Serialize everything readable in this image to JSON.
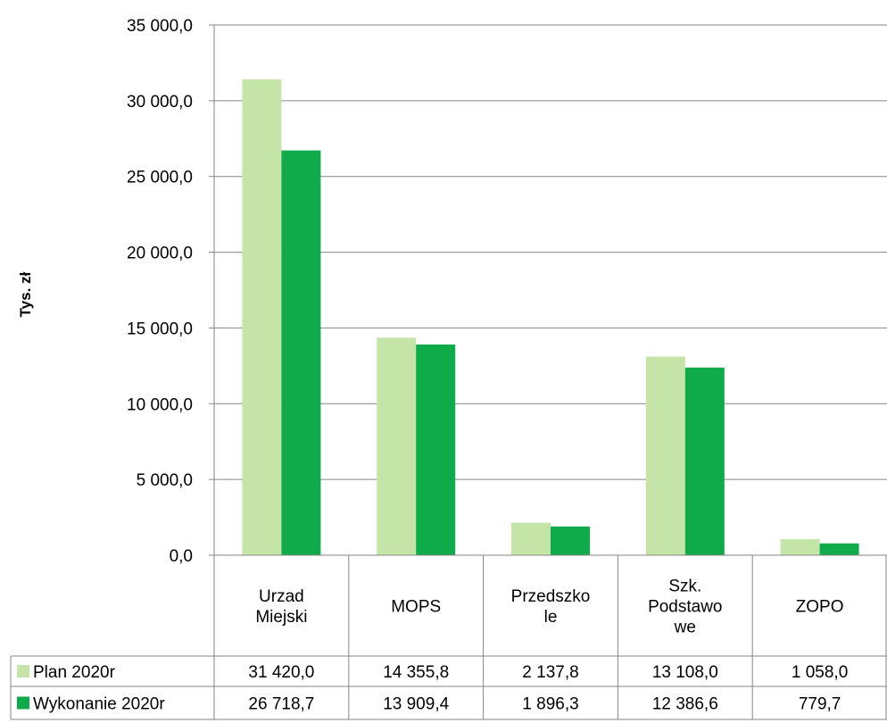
{
  "chart_data": {
    "type": "bar",
    "ylabel": "Tys. zł",
    "ylim": [
      0,
      35000
    ],
    "y_ticks": [
      0,
      5000,
      10000,
      15000,
      20000,
      25000,
      30000,
      35000
    ],
    "y_tick_labels": [
      "0,0",
      "5 000,0",
      "10 000,0",
      "15 000,0",
      "20 000,0",
      "25 000,0",
      "30 000,0",
      "35 000,0"
    ],
    "grid": true,
    "legend": "data-table-left",
    "categories": [
      [
        "Urzad",
        "Miejski"
      ],
      [
        "MOPS"
      ],
      [
        "Przedszko",
        "le"
      ],
      [
        "Szk.",
        "Podstawo",
        "we"
      ],
      [
        "ZOPO"
      ]
    ],
    "series": [
      {
        "name": "Plan 2020r",
        "color": "#c5e4a7",
        "values": [
          31420.0,
          14355.8,
          2137.8,
          13108.0,
          1058.0
        ],
        "labels": [
          "31 420,0",
          "14 355,8",
          "2 137,8",
          "13 108,0",
          "1 058,0"
        ]
      },
      {
        "name": "Wykonanie 2020r",
        "color": "#0fab4a",
        "values": [
          26718.7,
          13909.4,
          1896.3,
          12386.6,
          779.7
        ],
        "labels": [
          "26 718,7",
          "13 909,4",
          "1 896,3",
          "12 386,6",
          "779,7"
        ]
      }
    ]
  }
}
